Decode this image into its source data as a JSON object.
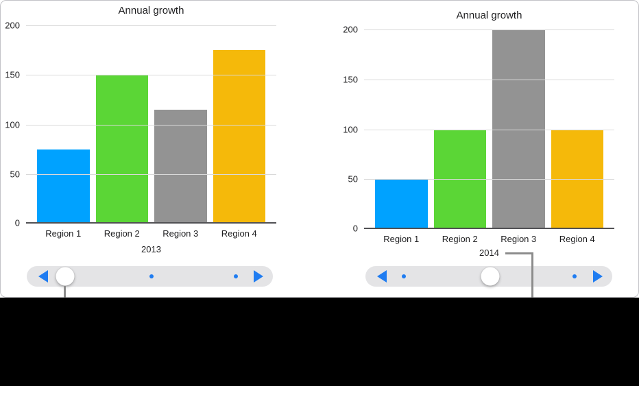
{
  "chart_data": [
    {
      "type": "bar",
      "title": "Annual growth",
      "categories": [
        "Region 1",
        "Region 2",
        "Region 3",
        "Region 4"
      ],
      "values": [
        75,
        150,
        115,
        175
      ],
      "bar_colors": [
        "#00A2FF",
        "#5BD636",
        "#939393",
        "#F5B90A"
      ],
      "xlabel": "2013",
      "ylabel": "",
      "ylim": [
        0,
        200
      ],
      "yticks": [
        0,
        50,
        100,
        150,
        200
      ],
      "grid": true,
      "legend": "none"
    },
    {
      "type": "bar",
      "title": "Annual growth",
      "categories": [
        "Region 1",
        "Region 2",
        "Region 3",
        "Region 4"
      ],
      "values": [
        50,
        100,
        200,
        100
      ],
      "bar_colors": [
        "#00A2FF",
        "#5BD636",
        "#939393",
        "#F5B90A"
      ],
      "xlabel": "2014",
      "ylabel": "",
      "ylim": [
        0,
        200
      ],
      "yticks": [
        0,
        50,
        100,
        150,
        200
      ],
      "grid": true,
      "legend": "none"
    }
  ],
  "sliders": [
    {
      "page_count": 3,
      "current_page": 1,
      "prev_icon": "triangle-left-icon",
      "next_icon": "triangle-right-icon"
    },
    {
      "page_count": 3,
      "current_page": 2,
      "prev_icon": "triangle-left-icon",
      "next_icon": "triangle-right-icon"
    }
  ],
  "colors": {
    "accent_blue": "#1F7CF1",
    "slider_track": "#E4E4E6",
    "slider_knob": "#FFFFFF",
    "gridline": "#D9D9D9",
    "axis_line": "#515154",
    "text": "#1D1D1F",
    "panel_border": "#C3C3C7",
    "callout_line": "#8C8C8C",
    "caption_band": "#000000",
    "background": "#FFFFFF"
  }
}
